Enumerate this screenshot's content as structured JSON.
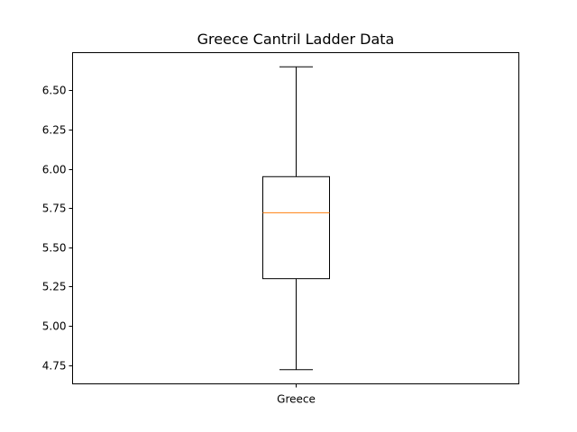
{
  "chart_data": {
    "type": "box",
    "title": "Greece Cantril Ladder Data",
    "xlabel": "",
    "ylabel": "",
    "categories": [
      "Greece"
    ],
    "boxes": [
      {
        "name": "Greece",
        "whisker_low": 4.72,
        "q1": 5.3,
        "median": 5.72,
        "q3": 5.95,
        "whisker_high": 6.65
      }
    ],
    "ylim": [
      4.63,
      6.74
    ],
    "yticks": [
      4.75,
      5.0,
      5.25,
      5.5,
      5.75,
      6.0,
      6.25,
      6.5
    ],
    "ytick_labels": [
      "4.75",
      "5.00",
      "5.25",
      "5.50",
      "5.75",
      "6.00",
      "6.25",
      "6.50"
    ],
    "grid": false,
    "colors": {
      "box": "#000000",
      "median": "#ff7f0e",
      "whisker": "#000000"
    }
  }
}
